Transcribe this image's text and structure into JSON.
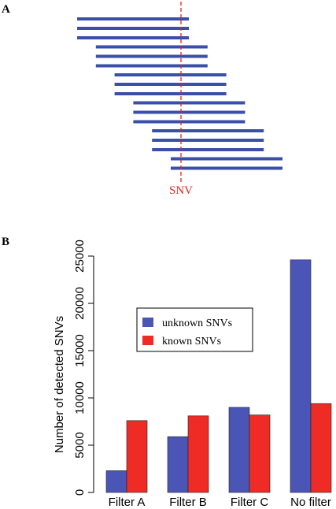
{
  "panel_a": {
    "label": "A",
    "snv_label": "SNV",
    "read_color": "#3a4fa8",
    "snv_color": "#e8231b"
  },
  "panel_b": {
    "label": "B"
  },
  "chart_data": {
    "type": "bar",
    "categories": [
      "Filter A",
      "Filter B",
      "Filter C",
      "No filter"
    ],
    "series": [
      {
        "name": "unknown SNVs",
        "color": "#4a55b5",
        "values": [
          2300,
          5900,
          9000,
          24600
        ]
      },
      {
        "name": "known SNVs",
        "color": "#ee2b24",
        "values": [
          7600,
          8100,
          8200,
          9400
        ]
      }
    ],
    "xlabel": "",
    "ylabel": "Number of detected SNVs",
    "ylim": [
      0,
      25000
    ],
    "yticks": [
      "0",
      "5000",
      "10000",
      "15000",
      "20000",
      "25000"
    ],
    "legend_position": "middle-left",
    "grid": false
  }
}
